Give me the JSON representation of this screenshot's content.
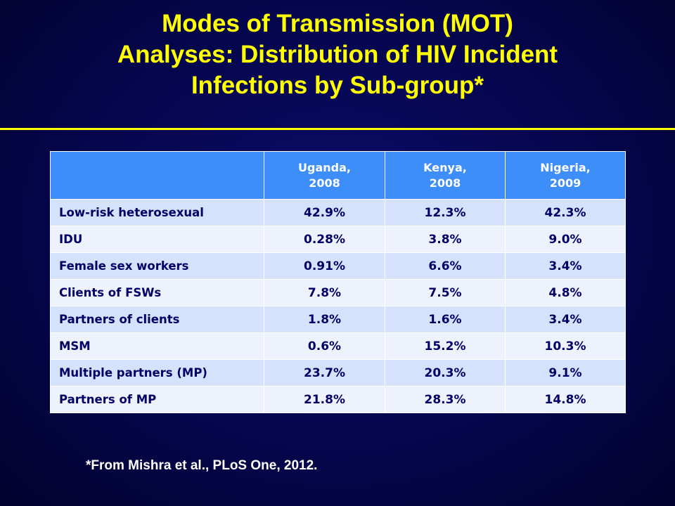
{
  "slide": {
    "title_lines": [
      "Modes of Transmission (MOT)",
      "Analyses: Distribution of HIV Incident",
      "Infections by Sub-group*"
    ],
    "footnote": "*From Mishra et al., PLoS One, 2012.",
    "colors": {
      "background": "#05054a",
      "title": "#ffff00",
      "header_fill": "#3d8ef8",
      "row_fill_odd": "#d4e2fb",
      "row_fill_even": "#edf2fd",
      "row_text": "#000066"
    }
  },
  "table": {
    "headers": [
      "",
      "Uganda,\n2008",
      "Kenya,\n2008",
      "Nigeria,\n2009"
    ],
    "rows": [
      {
        "group": "Low-risk heterosexual",
        "uganda": "42.9%",
        "kenya": "12.3%",
        "nigeria": "42.3%"
      },
      {
        "group": "IDU",
        "uganda": "0.28%",
        "kenya": "3.8%",
        "nigeria": "9.0%"
      },
      {
        "group": "Female sex workers",
        "uganda": "0.91%",
        "kenya": "6.6%",
        "nigeria": "3.4%"
      },
      {
        "group": "Clients of FSWs",
        "uganda": "7.8%",
        "kenya": "7.5%",
        "nigeria": "4.8%"
      },
      {
        "group": "Partners of clients",
        "uganda": "1.8%",
        "kenya": "1.6%",
        "nigeria": "3.4%"
      },
      {
        "group": "MSM",
        "uganda": "0.6%",
        "kenya": "15.2%",
        "nigeria": "10.3%"
      },
      {
        "group": "Multiple partners (MP)",
        "uganda": "23.7%",
        "kenya": "20.3%",
        "nigeria": "9.1%"
      },
      {
        "group": "Partners of MP",
        "uganda": "21.8%",
        "kenya": "28.3%",
        "nigeria": "14.8%"
      }
    ]
  }
}
